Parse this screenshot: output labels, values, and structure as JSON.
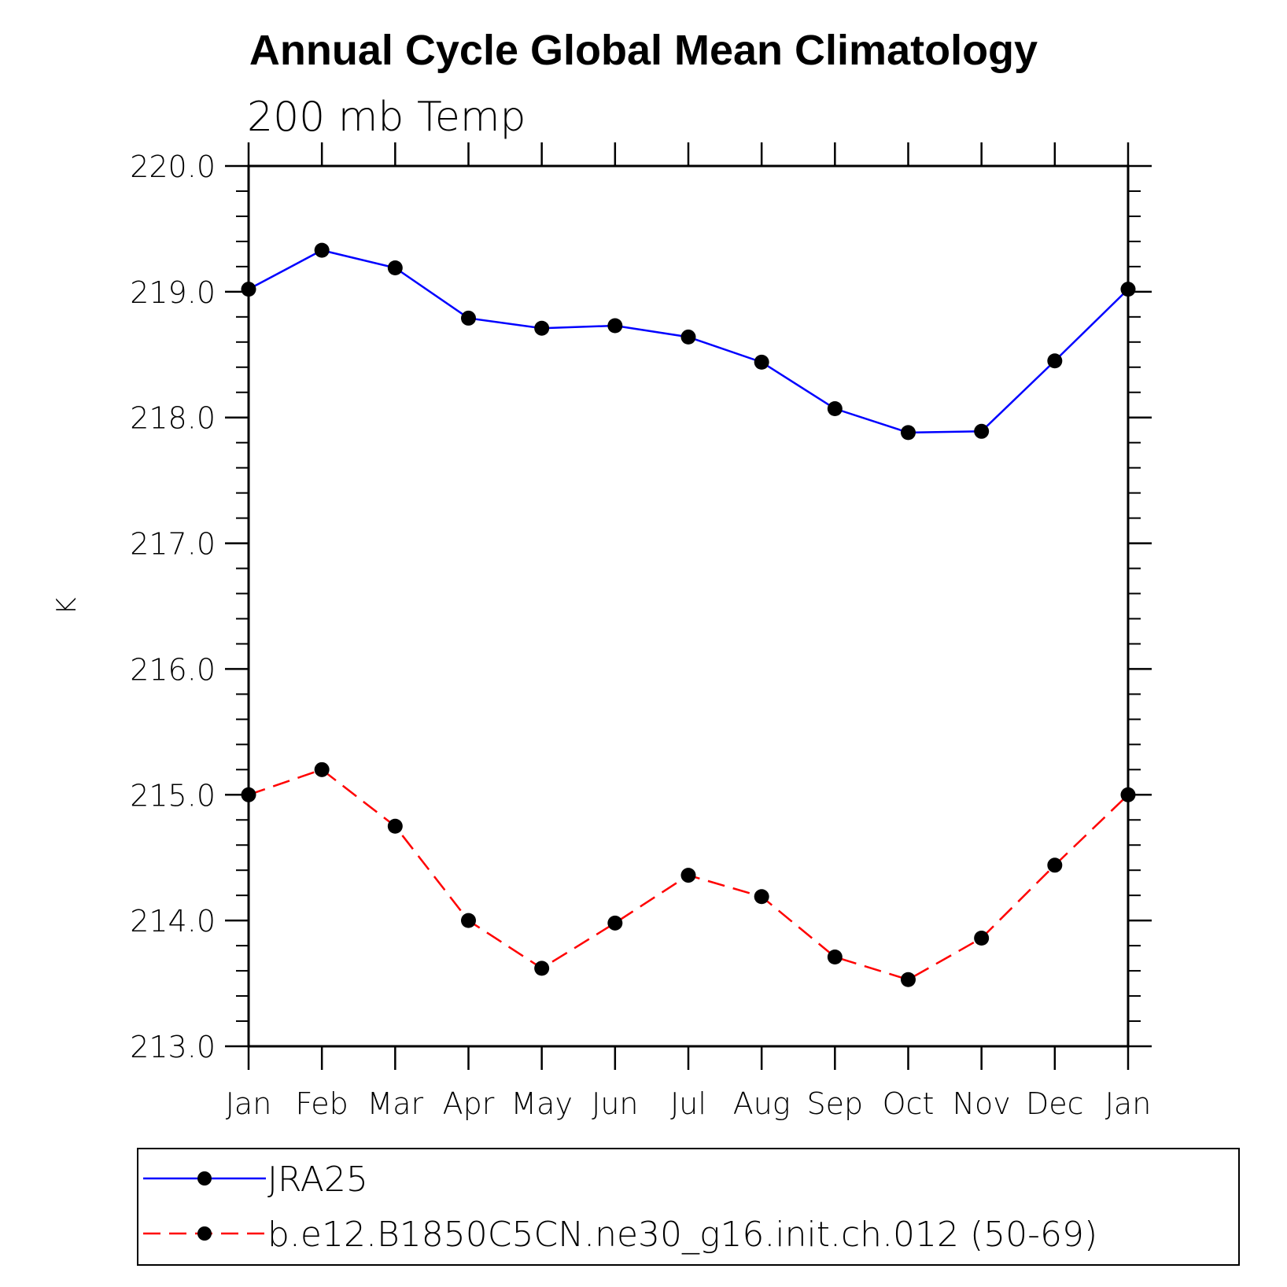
{
  "chart_data": {
    "type": "line",
    "title": "Annual Cycle Global Mean Climatology",
    "subtitle": "200 mb Temp",
    "xlabel": "",
    "ylabel": "K",
    "categories": [
      "Jan",
      "Feb",
      "Mar",
      "Apr",
      "May",
      "Jun",
      "Jul",
      "Aug",
      "Sep",
      "Oct",
      "Nov",
      "Dec",
      "Jan"
    ],
    "ylim": [
      213.0,
      220.0
    ],
    "yticks": [
      "213.0",
      "214.0",
      "215.0",
      "216.0",
      "217.0",
      "218.0",
      "219.0",
      "220.0"
    ],
    "grid": false,
    "legend_position": "bottom",
    "series": [
      {
        "name": "JRA25",
        "color": "#0000ff",
        "line_style": "solid",
        "marker": "filled-circle",
        "values": [
          219.02,
          219.33,
          219.19,
          218.79,
          218.71,
          218.73,
          218.64,
          218.44,
          218.07,
          217.88,
          217.89,
          218.45,
          219.02
        ]
      },
      {
        "name": "b.e12.B1850C5CN.ne30_g16.init.ch.012 (50-69)",
        "color": "#ff0000",
        "line_style": "dashed",
        "marker": "filled-circle",
        "values": [
          215.0,
          215.2,
          214.75,
          214.0,
          213.62,
          213.98,
          214.36,
          214.19,
          213.71,
          213.53,
          213.86,
          214.44,
          215.0
        ]
      }
    ]
  }
}
